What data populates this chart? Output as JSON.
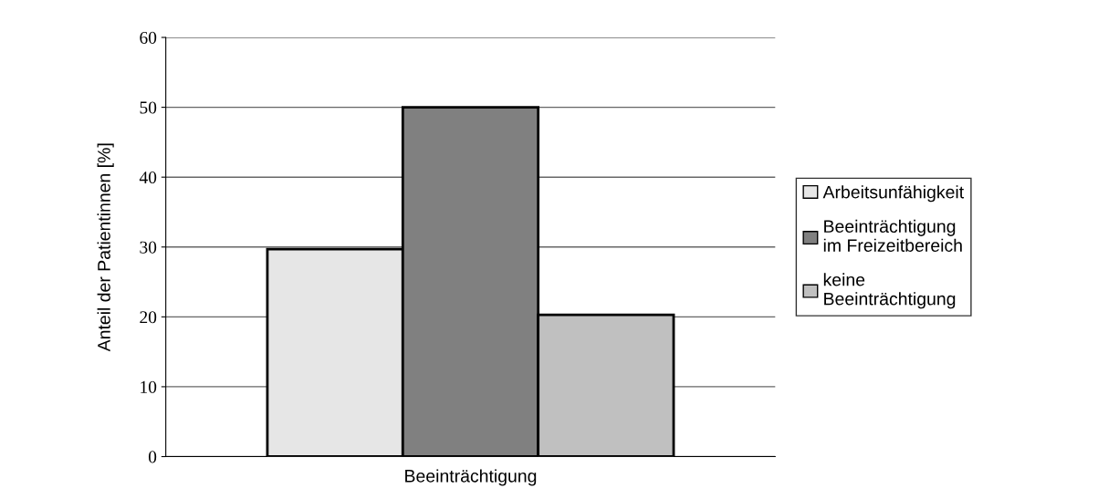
{
  "chart_data": {
    "type": "bar",
    "ylabel": "Anteil der Patientinnen [%]",
    "categories": [
      "Beeinträchtigung"
    ],
    "series": [
      {
        "name": "Arbeitsunfähigkeit",
        "color": "#e6e6e6",
        "values": [
          29.7
        ]
      },
      {
        "name": "Beeinträchtigung\nim Freizeitbereich",
        "color": "#808080",
        "values": [
          50
        ]
      },
      {
        "name": "keine\nBeeinträchtigung",
        "color": "#c0c0c0",
        "values": [
          20.3
        ]
      }
    ],
    "ylim": [
      0,
      60
    ],
    "yticks": [
      0,
      10,
      20,
      30,
      40,
      50,
      60
    ],
    "grid": "y",
    "legend": "right"
  }
}
